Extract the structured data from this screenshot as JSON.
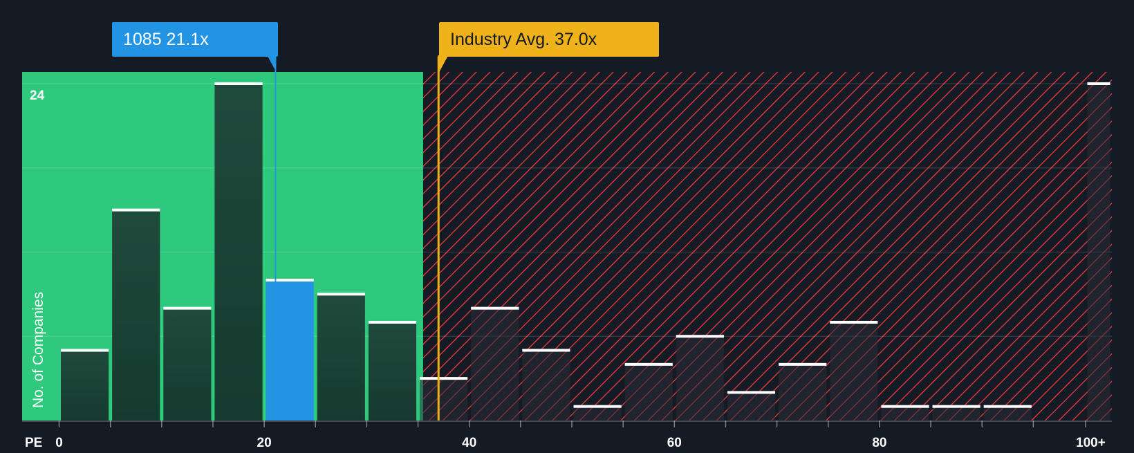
{
  "chart_data": {
    "type": "bar",
    "xlabel": "PE",
    "ylabel": "No. of Companies",
    "x_ticks": [
      "0",
      "20",
      "40",
      "60",
      "80",
      "100+"
    ],
    "y_ticks": [
      "24"
    ],
    "ylim": [
      0,
      25
    ],
    "bins": [
      {
        "range": [
          0,
          5
        ],
        "count": 5
      },
      {
        "range": [
          5,
          10
        ],
        "count": 15
      },
      {
        "range": [
          10,
          15
        ],
        "count": 8
      },
      {
        "range": [
          15,
          20
        ],
        "count": 24
      },
      {
        "range": [
          20,
          25
        ],
        "count": 10,
        "highlighted": true
      },
      {
        "range": [
          25,
          30
        ],
        "count": 9
      },
      {
        "range": [
          30,
          35
        ],
        "count": 7
      },
      {
        "range": [
          35,
          40
        ],
        "count": 3
      },
      {
        "range": [
          40,
          45
        ],
        "count": 8
      },
      {
        "range": [
          45,
          50
        ],
        "count": 5
      },
      {
        "range": [
          50,
          55
        ],
        "count": 1
      },
      {
        "range": [
          55,
          60
        ],
        "count": 4
      },
      {
        "range": [
          60,
          65
        ],
        "count": 6
      },
      {
        "range": [
          65,
          70
        ],
        "count": 2
      },
      {
        "range": [
          70,
          75
        ],
        "count": 4
      },
      {
        "range": [
          75,
          80
        ],
        "count": 7
      },
      {
        "range": [
          80,
          85
        ],
        "count": 1
      },
      {
        "range": [
          85,
          90
        ],
        "count": 1
      },
      {
        "range": [
          90,
          95
        ],
        "count": 1
      },
      {
        "range": [
          "100+"
        ],
        "count": 24
      }
    ],
    "company": {
      "label": "1085 21.1x",
      "pe": 21.1
    },
    "industry_avg": {
      "label": "Industry Avg. 37.0x",
      "pe": 37.0
    },
    "fair_range_max_pe": 35.5
  },
  "colors": {
    "background": "#151b24",
    "fair_zone": "#2fc97e",
    "hatch_red": "#d4353b",
    "bar_dark": "#1e4a3c",
    "bar_highlight": "#2394e3",
    "industry_line": "#f0b21b",
    "bar_cap": "#ffffff"
  }
}
